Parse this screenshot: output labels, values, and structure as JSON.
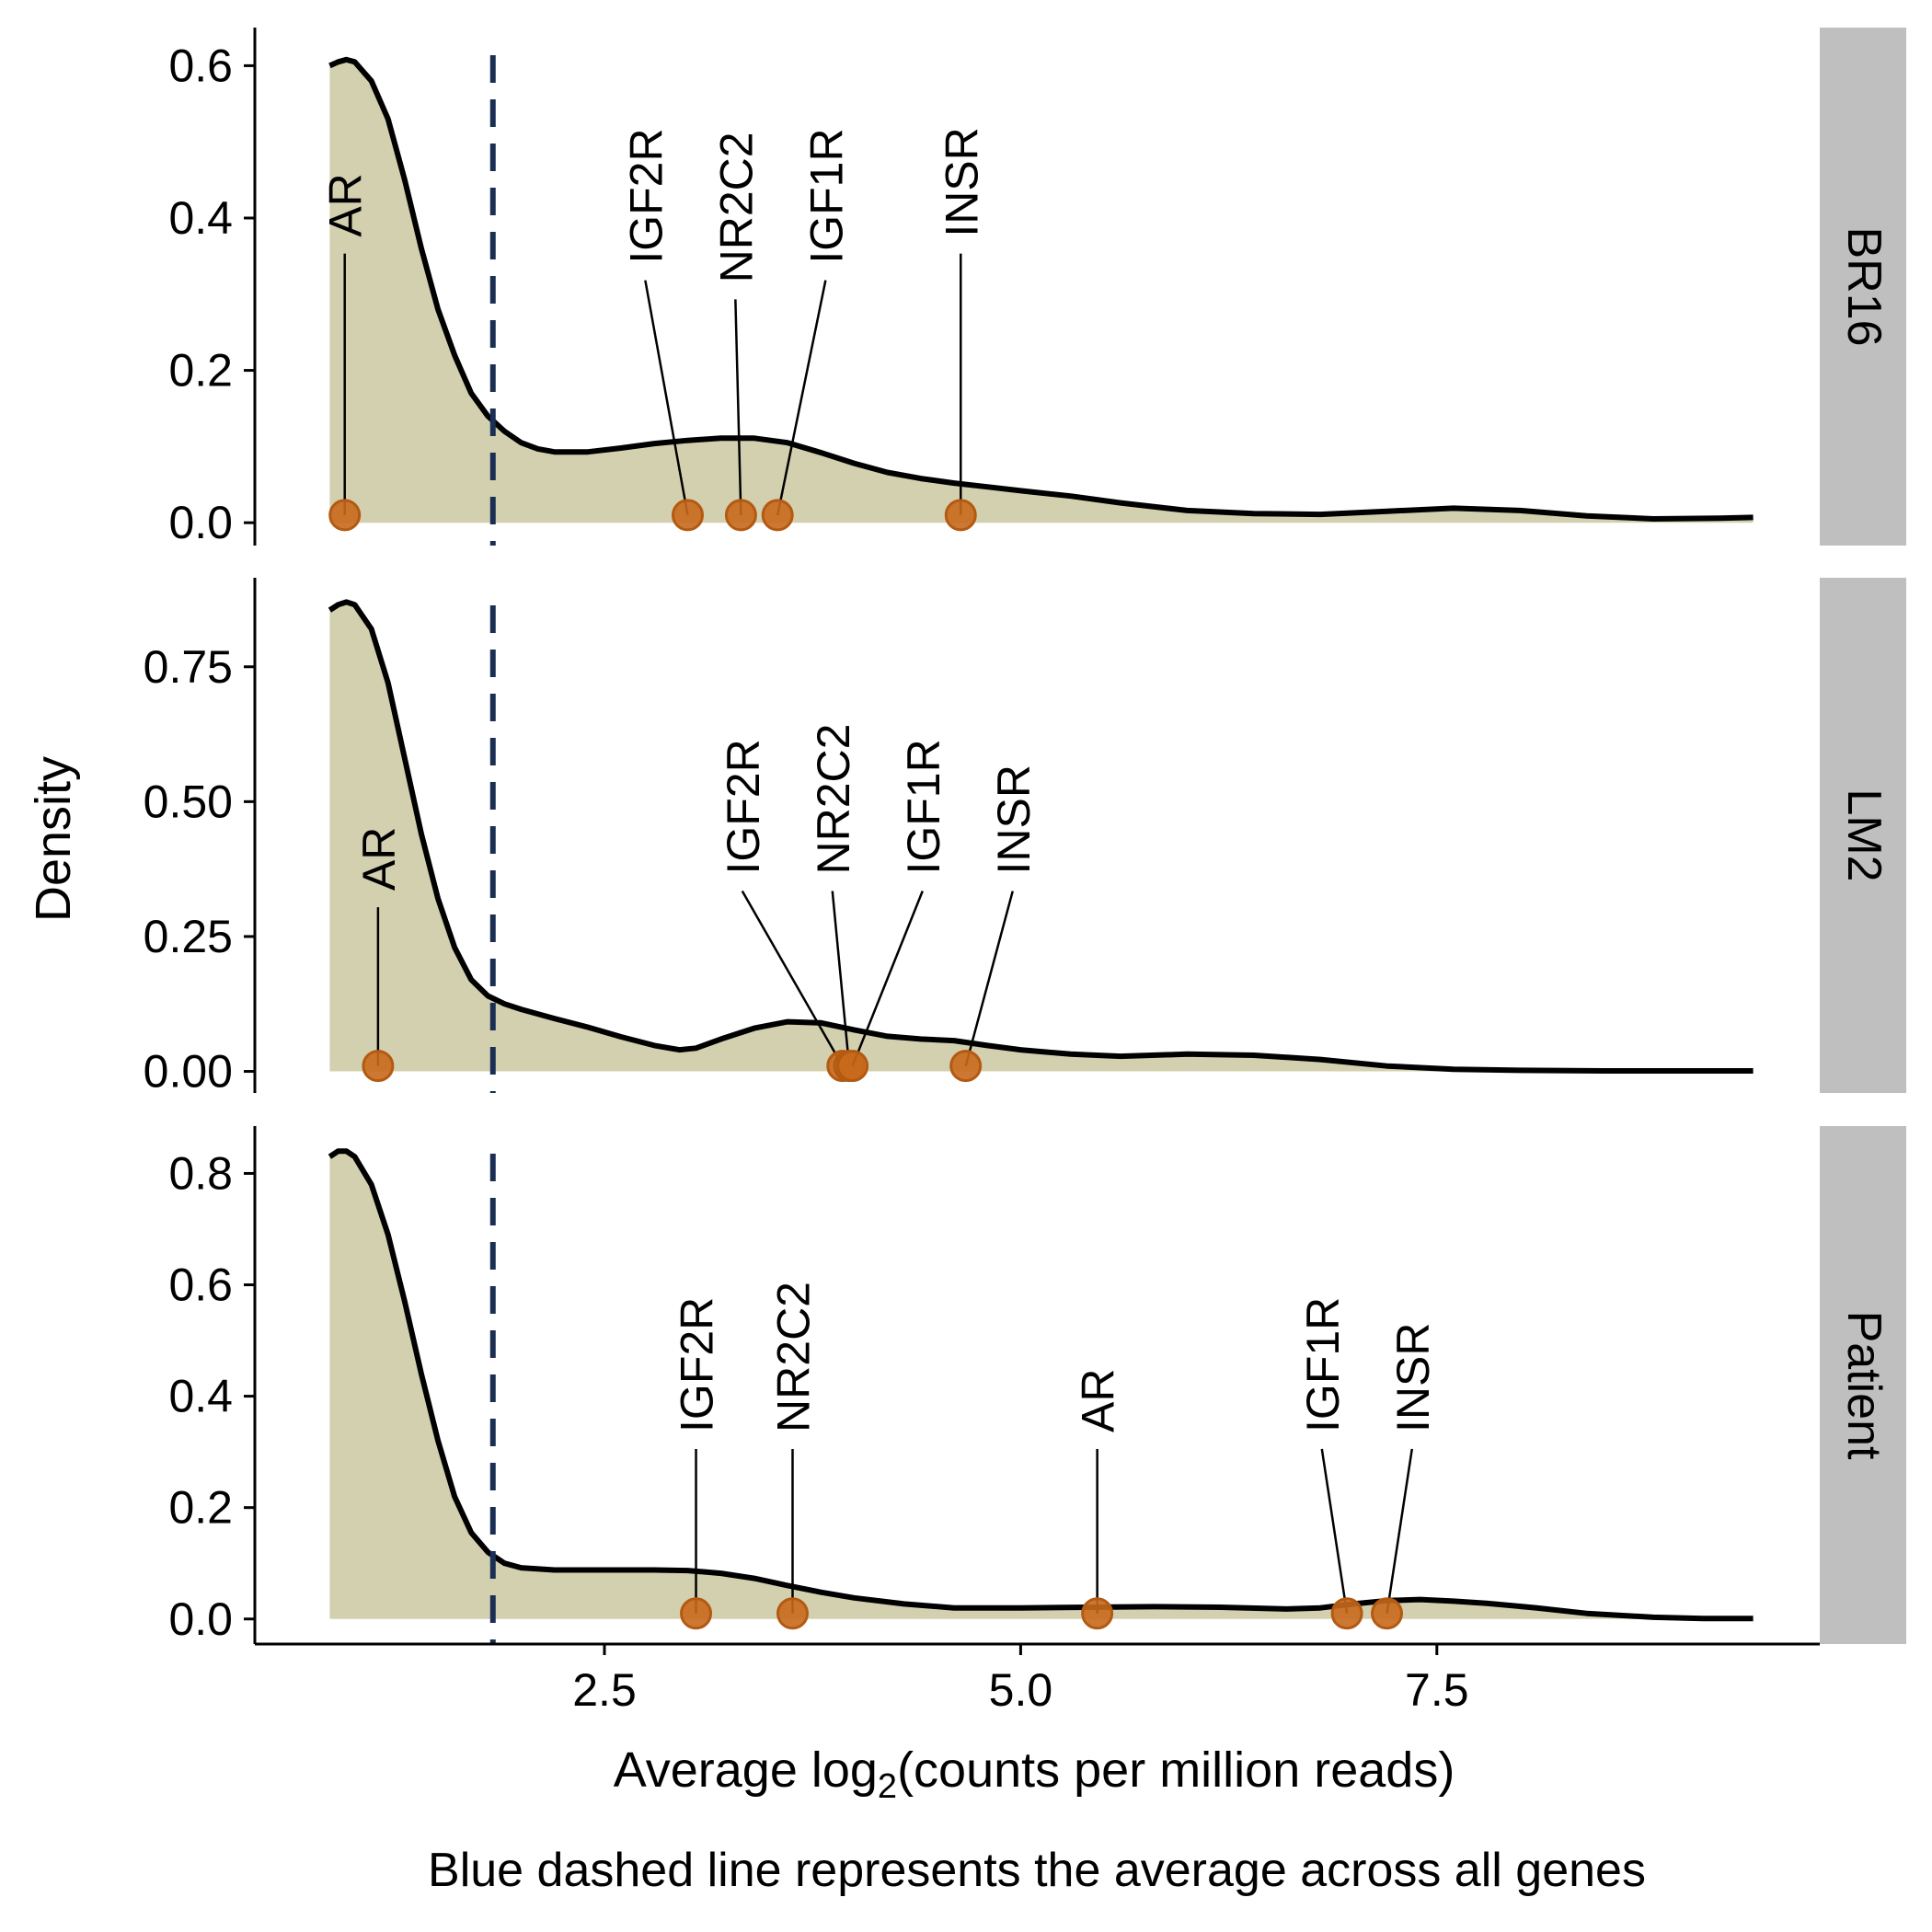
{
  "chart_data": {
    "type": "area",
    "ylabel": "Density",
    "xlabel_prefix": "Average log",
    "xlabel_sub": "2",
    "xlabel_suffix": "(counts per million reads)",
    "caption": "Blue dashed line represents the average across all genes",
    "xlim": [
      0.4,
      9.8
    ],
    "x_ticks": [
      2.5,
      5.0,
      7.5
    ],
    "x_tick_labels": [
      "2.5",
      "5.0",
      "7.5"
    ],
    "mean_line_x": 1.83,
    "colors": {
      "fill": "#d3d0b0",
      "curve": "#000000",
      "point": "#c8691c",
      "point_stroke": "#b35a12",
      "mean_line": "#1b2f55",
      "strip": "#bfbfbf"
    },
    "panels": [
      {
        "label": "BR16",
        "ylim": [
          -0.03,
          0.65
        ],
        "y_ticks": [
          0.0,
          0.2,
          0.4,
          0.6
        ],
        "y_tick_labels": [
          "0.0",
          "0.2",
          "0.4",
          "0.6"
        ],
        "density": [
          [
            0.85,
            0.6
          ],
          [
            0.9,
            0.605
          ],
          [
            0.95,
            0.608
          ],
          [
            1.0,
            0.605
          ],
          [
            1.1,
            0.58
          ],
          [
            1.2,
            0.53
          ],
          [
            1.3,
            0.45
          ],
          [
            1.4,
            0.36
          ],
          [
            1.5,
            0.28
          ],
          [
            1.6,
            0.22
          ],
          [
            1.7,
            0.17
          ],
          [
            1.8,
            0.14
          ],
          [
            1.9,
            0.12
          ],
          [
            2.0,
            0.105
          ],
          [
            2.1,
            0.097
          ],
          [
            2.2,
            0.093
          ],
          [
            2.4,
            0.093
          ],
          [
            2.6,
            0.098
          ],
          [
            2.8,
            0.104
          ],
          [
            3.0,
            0.108
          ],
          [
            3.2,
            0.111
          ],
          [
            3.4,
            0.111
          ],
          [
            3.6,
            0.105
          ],
          [
            3.8,
            0.092
          ],
          [
            4.0,
            0.078
          ],
          [
            4.2,
            0.066
          ],
          [
            4.4,
            0.058
          ],
          [
            4.6,
            0.052
          ],
          [
            4.8,
            0.047
          ],
          [
            5.0,
            0.042
          ],
          [
            5.3,
            0.035
          ],
          [
            5.6,
            0.026
          ],
          [
            6.0,
            0.016
          ],
          [
            6.4,
            0.012
          ],
          [
            6.8,
            0.011
          ],
          [
            7.2,
            0.015
          ],
          [
            7.6,
            0.019
          ],
          [
            8.0,
            0.016
          ],
          [
            8.4,
            0.009
          ],
          [
            8.8,
            0.005
          ],
          [
            9.2,
            0.006
          ],
          [
            9.4,
            0.007
          ]
        ],
        "fill_x": [
          0.85,
          9.4
        ],
        "genes": [
          {
            "name": "AR",
            "x": 0.94,
            "label_y": 0.375
          },
          {
            "name": "IGF2R",
            "x": 3.0,
            "label_y": 0.34
          },
          {
            "name": "NR2C2",
            "x": 3.32,
            "label_y": 0.315
          },
          {
            "name": "IGF1R",
            "x": 3.54,
            "label_y": 0.34
          },
          {
            "name": "INSR",
            "x": 4.64,
            "label_y": 0.375
          }
        ]
      },
      {
        "label": "LM2",
        "ylim": [
          -0.04,
          0.915
        ],
        "y_ticks": [
          0.0,
          0.25,
          0.5,
          0.75
        ],
        "y_tick_labels": [
          "0.00",
          "0.25",
          "0.50",
          "0.75"
        ],
        "density": [
          [
            0.85,
            0.855
          ],
          [
            0.9,
            0.865
          ],
          [
            0.95,
            0.87
          ],
          [
            1.0,
            0.865
          ],
          [
            1.1,
            0.82
          ],
          [
            1.2,
            0.72
          ],
          [
            1.3,
            0.58
          ],
          [
            1.4,
            0.44
          ],
          [
            1.5,
            0.32
          ],
          [
            1.6,
            0.23
          ],
          [
            1.7,
            0.17
          ],
          [
            1.8,
            0.14
          ],
          [
            1.9,
            0.125
          ],
          [
            2.0,
            0.115
          ],
          [
            2.2,
            0.098
          ],
          [
            2.4,
            0.082
          ],
          [
            2.6,
            0.064
          ],
          [
            2.8,
            0.048
          ],
          [
            2.95,
            0.04
          ],
          [
            3.05,
            0.043
          ],
          [
            3.2,
            0.06
          ],
          [
            3.4,
            0.08
          ],
          [
            3.6,
            0.092
          ],
          [
            3.8,
            0.09
          ],
          [
            4.0,
            0.077
          ],
          [
            4.2,
            0.065
          ],
          [
            4.4,
            0.06
          ],
          [
            4.6,
            0.057
          ],
          [
            4.8,
            0.048
          ],
          [
            5.0,
            0.04
          ],
          [
            5.3,
            0.032
          ],
          [
            5.6,
            0.028
          ],
          [
            6.0,
            0.032
          ],
          [
            6.4,
            0.03
          ],
          [
            6.8,
            0.022
          ],
          [
            7.2,
            0.01
          ],
          [
            7.6,
            0.004
          ],
          [
            8.0,
            0.002
          ],
          [
            8.5,
            0.001
          ],
          [
            9.0,
            0.001
          ],
          [
            9.4,
            0.001
          ]
        ],
        "fill_x": [
          0.85,
          9.4
        ],
        "genes": [
          {
            "name": "AR",
            "x": 1.14,
            "label_y": 0.335
          },
          {
            "name": "IGF2R",
            "x": 3.93,
            "label_y": 0.365
          },
          {
            "name": "NR2C2",
            "x": 3.97,
            "label_y": 0.365
          },
          {
            "name": "IGF1R",
            "x": 3.99,
            "label_y": 0.365
          },
          {
            "name": "INSR",
            "x": 4.67,
            "label_y": 0.365
          }
        ]
      },
      {
        "label": "Patient",
        "ylim": [
          -0.045,
          0.885
        ],
        "y_ticks": [
          0.0,
          0.2,
          0.4,
          0.6,
          0.8
        ],
        "y_tick_labels": [
          "0.0",
          "0.2",
          "0.4",
          "0.6",
          "0.8"
        ],
        "density": [
          [
            0.85,
            0.83
          ],
          [
            0.9,
            0.84
          ],
          [
            0.95,
            0.84
          ],
          [
            1.0,
            0.83
          ],
          [
            1.1,
            0.78
          ],
          [
            1.2,
            0.69
          ],
          [
            1.3,
            0.57
          ],
          [
            1.4,
            0.44
          ],
          [
            1.5,
            0.32
          ],
          [
            1.6,
            0.22
          ],
          [
            1.7,
            0.155
          ],
          [
            1.8,
            0.12
          ],
          [
            1.9,
            0.1
          ],
          [
            2.0,
            0.092
          ],
          [
            2.2,
            0.088
          ],
          [
            2.5,
            0.088
          ],
          [
            2.8,
            0.088
          ],
          [
            3.0,
            0.087
          ],
          [
            3.2,
            0.082
          ],
          [
            3.4,
            0.073
          ],
          [
            3.6,
            0.06
          ],
          [
            3.8,
            0.048
          ],
          [
            4.0,
            0.038
          ],
          [
            4.3,
            0.027
          ],
          [
            4.6,
            0.02
          ],
          [
            5.0,
            0.02
          ],
          [
            5.4,
            0.021
          ],
          [
            5.8,
            0.022
          ],
          [
            6.2,
            0.021
          ],
          [
            6.6,
            0.018
          ],
          [
            6.8,
            0.02
          ],
          [
            7.0,
            0.027
          ],
          [
            7.2,
            0.033
          ],
          [
            7.4,
            0.035
          ],
          [
            7.6,
            0.032
          ],
          [
            7.8,
            0.028
          ],
          [
            8.1,
            0.02
          ],
          [
            8.4,
            0.01
          ],
          [
            8.8,
            0.003
          ],
          [
            9.1,
            0.001
          ],
          [
            9.4,
            0.001
          ]
        ],
        "fill_x": [
          0.85,
          9.4
        ],
        "genes": [
          {
            "name": "IGF2R",
            "x": 3.05,
            "label_y": 0.335
          },
          {
            "name": "NR2C2",
            "x": 3.63,
            "label_y": 0.335
          },
          {
            "name": "AR",
            "x": 5.46,
            "label_y": 0.335
          },
          {
            "name": "IGF1R",
            "x": 6.96,
            "label_y": 0.335
          },
          {
            "name": "INSR",
            "x": 7.2,
            "label_y": 0.335
          }
        ]
      }
    ]
  }
}
